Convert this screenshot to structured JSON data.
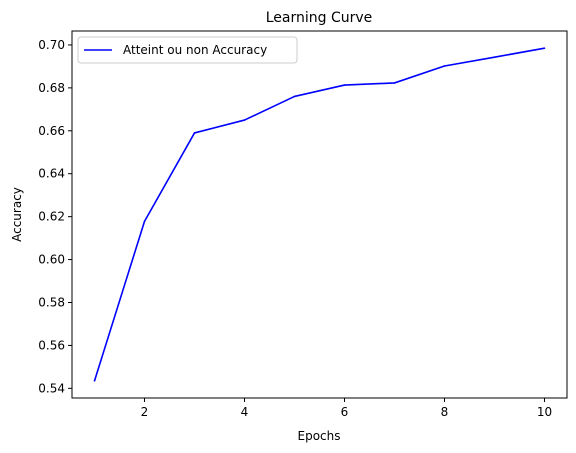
{
  "chart_data": {
    "type": "line",
    "title": "Learning Curve",
    "xlabel": "Epochs",
    "ylabel": "Accuracy",
    "xlim": [
      0.55,
      10.45
    ],
    "ylim": [
      0.5355,
      0.7065
    ],
    "xticks": [
      2,
      4,
      6,
      8,
      10
    ],
    "yticks": [
      0.54,
      0.56,
      0.58,
      0.6,
      0.62,
      0.64,
      0.66,
      0.68,
      0.7
    ],
    "x": [
      1,
      2,
      3,
      4,
      5,
      6,
      7,
      8,
      9,
      10
    ],
    "series": [
      {
        "name": "Atteint ou non Accuracy",
        "color": "#0000ff",
        "values": [
          0.5435,
          0.6178,
          0.659,
          0.665,
          0.676,
          0.6813,
          0.6823,
          0.6902,
          0.6943,
          0.6985
        ]
      }
    ],
    "grid": false,
    "legend_position": "top-left"
  }
}
